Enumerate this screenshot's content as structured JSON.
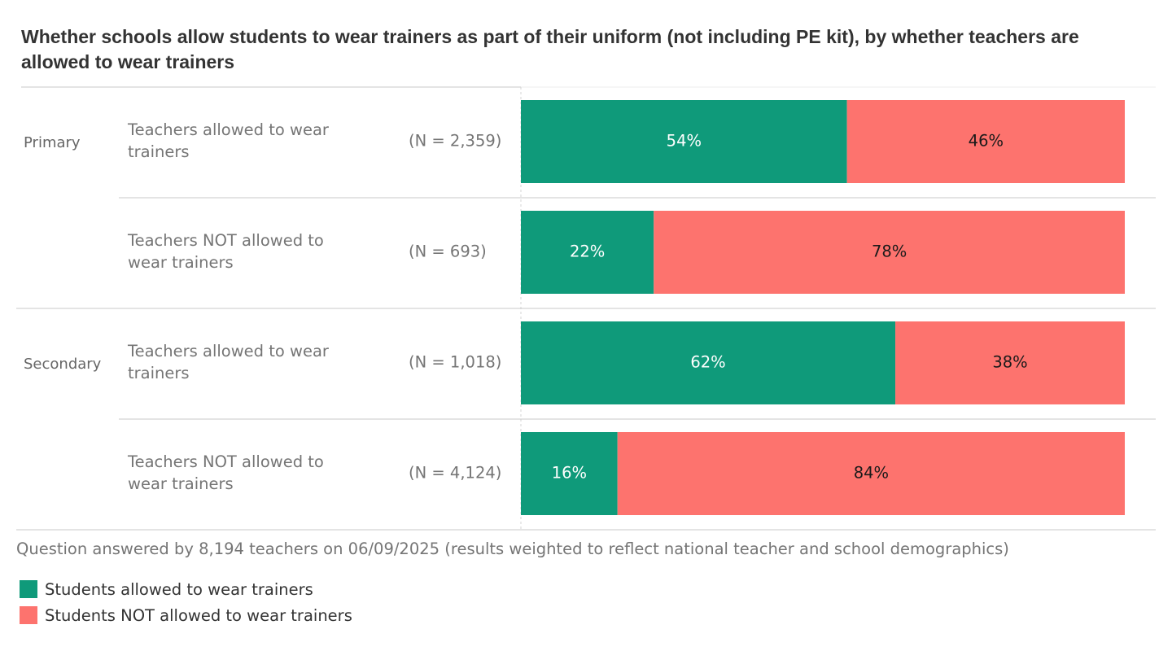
{
  "chart_data": {
    "type": "bar",
    "orientation": "horizontal",
    "stacked": true,
    "title": "Whether schools allow students to wear trainers as part of their uniform (not including PE kit), by whether teachers are allowed to wear trainers",
    "groups": [
      {
        "name": "Primary",
        "rows": [
          {
            "label": "Teachers allowed to wear trainers",
            "n": "(N = 2,359)",
            "values": [
              54,
              46
            ]
          },
          {
            "label": "Teachers NOT allowed to wear trainers",
            "n": "(N = 693)",
            "values": [
              22,
              78
            ]
          }
        ]
      },
      {
        "name": "Secondary",
        "rows": [
          {
            "label": "Teachers allowed to wear trainers",
            "n": "(N = 1,018)",
            "values": [
              62,
              38
            ]
          },
          {
            "label": "Teachers NOT allowed to wear trainers",
            "n": "(N = 4,124)",
            "values": [
              16,
              84
            ]
          }
        ]
      }
    ],
    "series": [
      {
        "name": "Students allowed to wear trainers",
        "color": "#0f9a7a",
        "label_color": "#ffffff"
      },
      {
        "name": "Students NOT allowed to wear trainers",
        "color": "#fd736e",
        "label_color": "#1a1a1a"
      }
    ],
    "value_suffix": "%",
    "xlim": [
      0,
      100
    ],
    "legend_position": "bottom-left",
    "footnote": "Question answered by 8,194 teachers on 06/09/2025 (results weighted to reflect national teacher and school demographics)"
  }
}
